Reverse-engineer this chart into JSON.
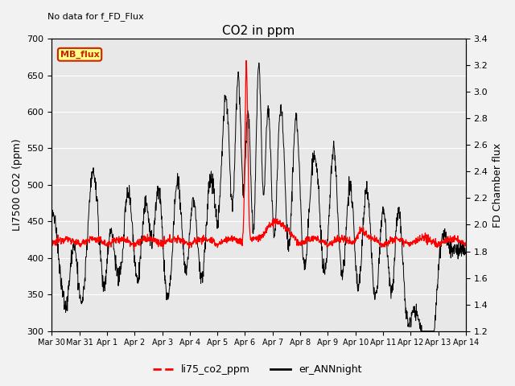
{
  "title": "CO2 in ppm",
  "ylabel_left": "LI7500 CO2 (ppm)",
  "ylabel_right": "FD Chamber flux",
  "top_left_text": "No data for f_FD_Flux",
  "mb_flux_label": "MB_flux",
  "ylim_left": [
    300,
    700
  ],
  "ylim_right": [
    1.2,
    3.4
  ],
  "xtick_labels": [
    "Mar 30",
    "Mar 31",
    "Apr 1",
    "Apr 2",
    "Apr 3",
    "Apr 4",
    "Apr 5",
    "Apr 6",
    "Apr 7",
    "Apr 8",
    "Apr 9",
    "Apr 10",
    "Apr 11",
    "Apr 12",
    "Apr 13",
    "Apr 14"
  ],
  "legend_labels": [
    "li75_co2_ppm",
    "er_ANNnight"
  ],
  "line_colors": [
    "#ff0000",
    "#000000"
  ],
  "plot_bg_color": "#e8e8e8",
  "fig_bg_color": "#f2f2f2",
  "title_fontsize": 11,
  "axis_fontsize": 9,
  "tick_fontsize": 8
}
